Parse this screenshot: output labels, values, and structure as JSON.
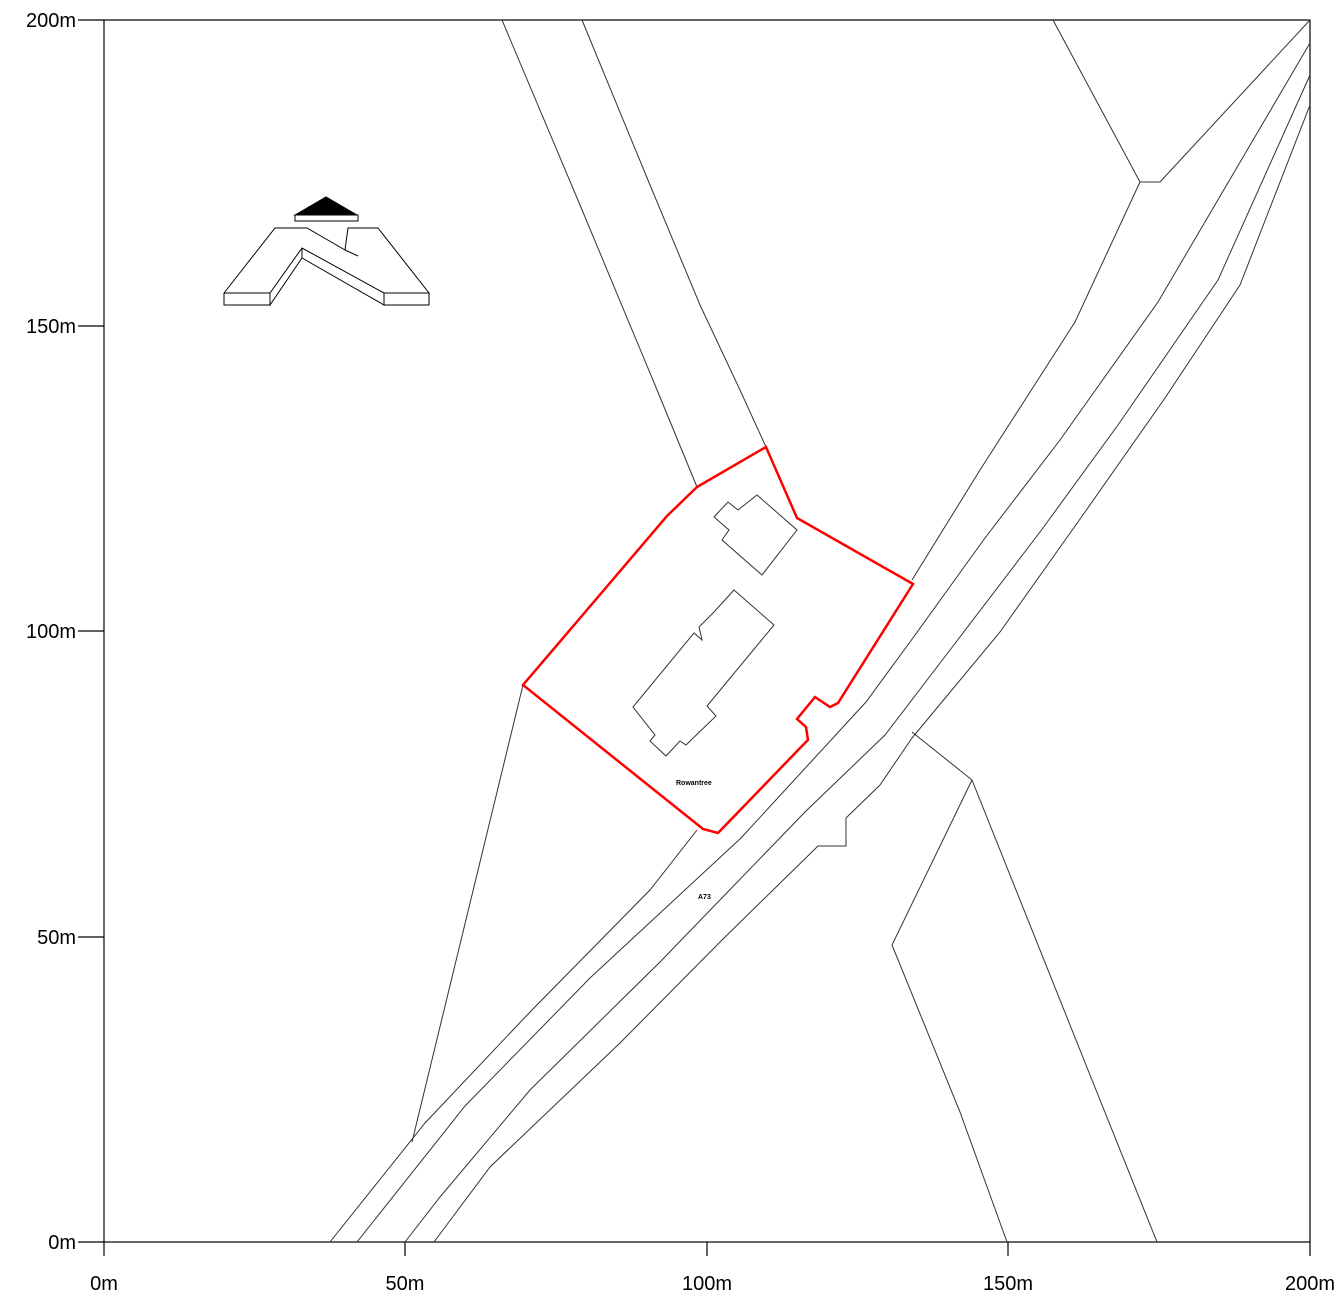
{
  "axes": {
    "x_ticks": [
      "0m",
      "50m",
      "100m",
      "150m",
      "200m"
    ],
    "y_ticks": [
      "0m",
      "50m",
      "100m",
      "150m",
      "200m"
    ]
  },
  "labels": {
    "property": "Rowantree",
    "road": "A73"
  },
  "icons": {
    "north_arrow": "north-arrow-icon"
  },
  "colors": {
    "boundary": "#ff0000",
    "lines": "#333333"
  }
}
